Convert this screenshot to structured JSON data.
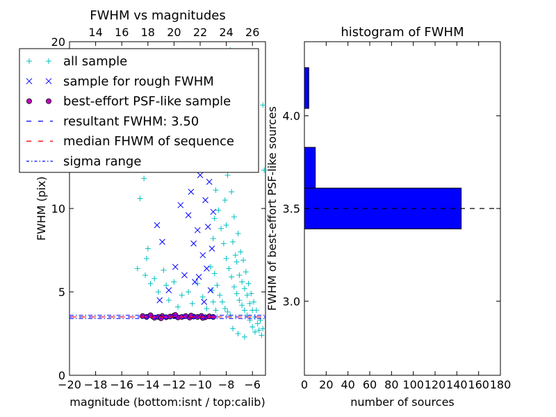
{
  "chart_data": [
    {
      "type": "scatter",
      "title": "FWHM vs magnitudes",
      "xlabel": "magnitude (bottom:isnt / top:calib)",
      "ylabel": "FWHM (pix)",
      "xlim": [
        -20,
        -5
      ],
      "ylim": [
        0,
        20
      ],
      "xticks": [
        -20,
        -18,
        -16,
        -14,
        -12,
        -10,
        -8,
        -6
      ],
      "xtick_labels": [
        "−20",
        "−18",
        "−16",
        "−14",
        "−12",
        "−10",
        "−8",
        "−6"
      ],
      "yticks": [
        0,
        5,
        10,
        20
      ],
      "ytick_labels": [
        "0",
        "5",
        "10",
        "20"
      ],
      "top_axis": {
        "label_offset": 32,
        "ticks": [
          14,
          16,
          18,
          20,
          22,
          24,
          26
        ],
        "tick_labels": [
          "14",
          "16",
          "18",
          "20",
          "22",
          "24",
          "26"
        ]
      },
      "legend": {
        "position": "upper-left",
        "entries": [
          {
            "label": "all sample",
            "marker": "plus",
            "color": "#00bfbf"
          },
          {
            "label": "sample for rough FWHM",
            "marker": "x",
            "color": "#0000ff"
          },
          {
            "label": "best-effort PSF-like sample",
            "marker": "circle",
            "color": "#bf00bf"
          },
          {
            "label": "resultant FWHM: 3.50",
            "marker": "dashed",
            "color": "#0000ff"
          },
          {
            "label": "median FHWM of sequence",
            "marker": "dashed",
            "color": "#ff0000"
          },
          {
            "label": "sigma range",
            "marker": "dashdot",
            "color": "#0000ff"
          }
        ]
      },
      "reference_lines": {
        "resultant_fwhm": 3.5,
        "median_fwhm": 3.5,
        "sigma_range": [
          3.4,
          3.6
        ]
      },
      "series": [
        {
          "name": "all sample",
          "points": [
            [
              -14.6,
              10.6
            ],
            [
              -14.3,
              11.8
            ],
            [
              -14.1,
              7.0
            ],
            [
              -14.0,
              7.6
            ],
            [
              -14.2,
              6.0
            ],
            [
              -14.8,
              6.4
            ],
            [
              -13.8,
              5.5
            ],
            [
              -13.5,
              5.8
            ],
            [
              -13.2,
              5.0
            ],
            [
              -12.8,
              6.3
            ],
            [
              -12.6,
              5.4
            ],
            [
              -12.4,
              4.5
            ],
            [
              -12.0,
              5.6
            ],
            [
              -11.7,
              4.1
            ],
            [
              -11.4,
              4.8
            ],
            [
              -10.9,
              5.0
            ],
            [
              -10.6,
              4.3
            ],
            [
              -10.2,
              5.5
            ],
            [
              -9.8,
              4.7
            ],
            [
              -9.5,
              4.0
            ],
            [
              -9.2,
              6.5
            ],
            [
              -9.0,
              8.2
            ],
            [
              -8.9,
              9.4
            ],
            [
              -8.8,
              11.1
            ],
            [
              -8.7,
              12.6
            ],
            [
              -8.6,
              14.0
            ],
            [
              -8.5,
              15.4
            ],
            [
              -8.4,
              16.8
            ],
            [
              -8.3,
              18.5
            ],
            [
              -8.2,
              13.2
            ],
            [
              -8.1,
              10.5
            ],
            [
              -8.0,
              9.0
            ],
            [
              -7.9,
              12.0
            ],
            [
              -7.8,
              15.0
            ],
            [
              -7.7,
              19.5
            ],
            [
              -7.6,
              11.0
            ],
            [
              -7.5,
              8.0
            ],
            [
              -7.4,
              9.5
            ],
            [
              -7.3,
              7.2
            ],
            [
              -7.2,
              6.8
            ],
            [
              -7.1,
              8.5
            ],
            [
              -7.0,
              6.0
            ],
            [
              -6.9,
              7.4
            ],
            [
              -6.8,
              5.6
            ],
            [
              -6.7,
              6.9
            ],
            [
              -6.6,
              5.2
            ],
            [
              -6.5,
              6.2
            ],
            [
              -6.4,
              4.8
            ],
            [
              -6.3,
              5.5
            ],
            [
              -6.2,
              4.3
            ],
            [
              -6.1,
              4.9
            ],
            [
              -6.0,
              3.9
            ],
            [
              -5.9,
              4.4
            ],
            [
              -5.8,
              3.5
            ],
            [
              -5.7,
              3.9
            ],
            [
              -5.6,
              3.1
            ],
            [
              -5.5,
              2.7
            ],
            [
              -5.4,
              3.3
            ],
            [
              -5.3,
              2.4
            ],
            [
              -5.2,
              2.8
            ],
            [
              -5.2,
              16.2
            ],
            [
              -5.1,
              12.3
            ],
            [
              -8.6,
              9.9
            ],
            [
              -8.4,
              8.8
            ],
            [
              -8.2,
              7.9
            ],
            [
              -8.0,
              7.0
            ],
            [
              -7.8,
              6.4
            ],
            [
              -7.6,
              5.9
            ],
            [
              -7.4,
              5.3
            ],
            [
              -7.2,
              4.9
            ],
            [
              -7.0,
              4.5
            ],
            [
              -6.8,
              4.2
            ],
            [
              -6.6,
              3.9
            ],
            [
              -6.4,
              3.6
            ],
            [
              -8.9,
              6.1
            ],
            [
              -8.7,
              5.4
            ],
            [
              -8.5,
              4.8
            ],
            [
              -8.3,
              4.4
            ],
            [
              -8.1,
              4.0
            ],
            [
              -7.9,
              3.8
            ],
            [
              -7.7,
              3.6
            ],
            [
              -9.1,
              5.1
            ],
            [
              -9.0,
              4.4
            ],
            [
              -8.8,
              3.9
            ],
            [
              -6.2,
              3.3
            ],
            [
              -6.0,
              2.9
            ],
            [
              -5.8,
              2.6
            ],
            [
              -6.6,
              2.3
            ],
            [
              -7.1,
              2.5
            ],
            [
              -7.5,
              2.8
            ]
          ]
        },
        {
          "name": "sample for rough FWHM",
          "points": [
            [
              -13.3,
              9.0
            ],
            [
              -13.1,
              4.5
            ],
            [
              -12.9,
              8.0
            ],
            [
              -12.4,
              5.1
            ],
            [
              -11.9,
              6.5
            ],
            [
              -11.5,
              10.2
            ],
            [
              -11.2,
              6.0
            ],
            [
              -10.9,
              9.6
            ],
            [
              -10.7,
              11.0
            ],
            [
              -10.4,
              5.6
            ],
            [
              -10.2,
              8.7
            ],
            [
              -10.0,
              12.0
            ],
            [
              -9.8,
              7.2
            ],
            [
              -9.6,
              10.5
            ],
            [
              -9.5,
              6.4
            ],
            [
              -9.4,
              8.9
            ],
            [
              -9.3,
              13.0
            ],
            [
              -9.2,
              5.1
            ],
            [
              -9.1,
              7.6
            ],
            [
              -9.0,
              9.8
            ],
            [
              -11.8,
              12.6
            ],
            [
              -10.5,
              7.9
            ],
            [
              -9.7,
              4.4
            ],
            [
              -9.3,
              11.6
            ],
            [
              -10.1,
              5.9
            ]
          ]
        },
        {
          "name": "best-effort PSF-like sample",
          "points": [
            [
              -14.4,
              3.55
            ],
            [
              -14.1,
              3.5
            ],
            [
              -13.8,
              3.6
            ],
            [
              -13.5,
              3.45
            ],
            [
              -13.2,
              3.5
            ],
            [
              -12.9,
              3.55
            ],
            [
              -12.6,
              3.48
            ],
            [
              -12.3,
              3.52
            ],
            [
              -12.0,
              3.58
            ],
            [
              -11.7,
              3.47
            ],
            [
              -11.4,
              3.5
            ],
            [
              -11.1,
              3.55
            ],
            [
              -10.8,
              3.46
            ],
            [
              -10.5,
              3.52
            ],
            [
              -10.2,
              3.5
            ],
            [
              -9.9,
              3.56
            ],
            [
              -9.6,
              3.48
            ],
            [
              -9.3,
              3.53
            ],
            [
              -9.0,
              3.5
            ],
            [
              -13.0,
              3.42
            ],
            [
              -11.9,
              3.62
            ],
            [
              -10.7,
              3.58
            ],
            [
              -9.8,
              3.44
            ]
          ]
        }
      ]
    },
    {
      "type": "bar",
      "orientation": "horizontal",
      "title": "histogram of FWHM",
      "xlabel": "number of sources",
      "ylabel": "FWHM of best-effort PSF-like sources",
      "xlim": [
        0,
        180
      ],
      "ylim": [
        2.6,
        4.4
      ],
      "xticks": [
        0,
        20,
        40,
        60,
        80,
        100,
        120,
        140,
        160,
        180
      ],
      "xtick_labels": [
        "0",
        "20",
        "40",
        "60",
        "80",
        "100",
        "120",
        "140",
        "160",
        "180"
      ],
      "yticks": [
        3.0,
        3.5,
        4.0
      ],
      "ytick_labels": [
        "3.0",
        "3.5",
        "4.0"
      ],
      "bars": [
        {
          "y0": 3.39,
          "y1": 3.61,
          "value": 144
        },
        {
          "y0": 3.61,
          "y1": 3.83,
          "value": 10
        },
        {
          "y0": 4.04,
          "y1": 4.26,
          "value": 4
        }
      ],
      "reference_line": {
        "y": 3.5,
        "style": "dashed",
        "color": "#000000"
      },
      "bar_color": "#0000ff"
    }
  ]
}
